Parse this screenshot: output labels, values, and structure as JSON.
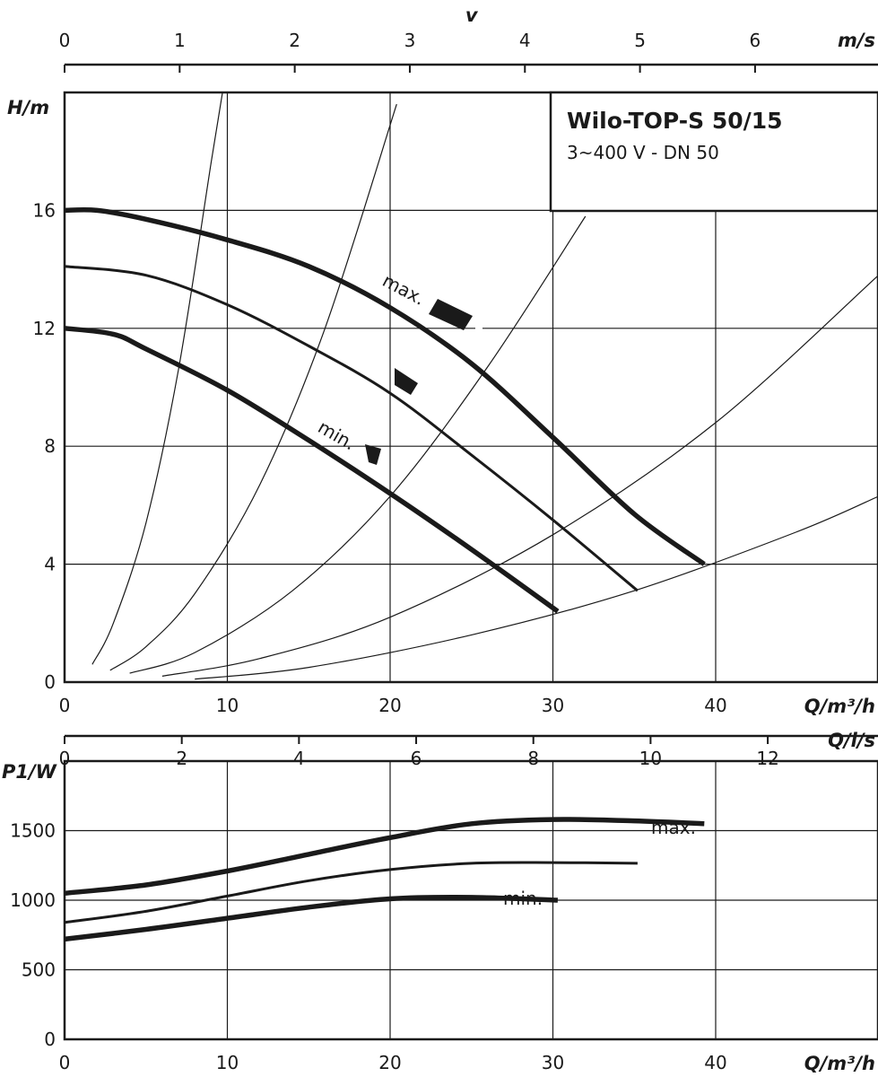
{
  "chart_data": [
    {
      "type": "line",
      "title": "Wilo-TOP-S 50/15",
      "subtitle": "3~400 V - DN 50",
      "xlabel": "Q/m³/h",
      "ylabel": "H/m",
      "xlim": [
        0,
        50
      ],
      "ylim": [
        0,
        20
      ],
      "xticks": [
        "0",
        "10",
        "20",
        "30",
        "40"
      ],
      "yticks": [
        "0",
        "4",
        "8",
        "12",
        "16"
      ],
      "top_axis": {
        "label": "v",
        "unit": "m/s",
        "ticks": [
          "0",
          "1",
          "2",
          "3",
          "4",
          "5",
          "6"
        ],
        "q_per_unit": 7.07
      },
      "series": [
        {
          "name": "max.",
          "x": [
            0,
            2,
            5,
            10,
            15,
            20,
            25,
            30,
            35,
            39.3
          ],
          "y": [
            16.0,
            16.0,
            15.7,
            15.0,
            14.1,
            12.7,
            10.8,
            8.3,
            5.7,
            4.0
          ]
        },
        {
          "name": "",
          "x": [
            0,
            5,
            10,
            15,
            20,
            25,
            30,
            35.2
          ],
          "y": [
            14.1,
            13.8,
            12.8,
            11.4,
            9.8,
            7.7,
            5.5,
            3.1
          ]
        },
        {
          "name": "min.",
          "x": [
            0,
            3,
            5,
            10,
            15,
            20,
            25,
            30.3
          ],
          "y": [
            12.0,
            11.8,
            11.3,
            9.9,
            8.2,
            6.4,
            4.5,
            2.4
          ]
        }
      ],
      "system_curves": [
        {
          "x": [
            1.7,
            3,
            5,
            7,
            9,
            9.7
          ],
          "y": [
            0.6,
            2.0,
            5.4,
            10.6,
            17.6,
            20.0
          ]
        },
        {
          "x": [
            2.8,
            5,
            8,
            12,
            16,
            20.4
          ],
          "y": [
            0.4,
            1.2,
            3.0,
            6.7,
            12.0,
            19.6
          ]
        },
        {
          "x": [
            4,
            8,
            14,
            20,
            26,
            32
          ],
          "y": [
            0.3,
            1.0,
            3.1,
            6.3,
            10.7,
            15.8
          ]
        },
        {
          "x": [
            6,
            12,
            20,
            30,
            40,
            50
          ],
          "y": [
            0.2,
            0.8,
            2.2,
            5.0,
            8.8,
            13.8
          ]
        },
        {
          "x": [
            8,
            15,
            25,
            35,
            45,
            50
          ],
          "y": [
            0.1,
            0.5,
            1.6,
            3.1,
            5.1,
            6.3
          ]
        }
      ],
      "markers": [
        "max.",
        "",
        "min."
      ]
    },
    {
      "type": "line",
      "xlabel": "Q/m³/h",
      "ylabel": "P1/W",
      "xlim": [
        0,
        50
      ],
      "ylim": [
        0,
        2000
      ],
      "xticks": [
        "0",
        "10",
        "20",
        "30",
        "40"
      ],
      "yticks": [
        "0",
        "500",
        "1000",
        "1500"
      ],
      "top_axis": {
        "unit": "Q/l/s",
        "ticks": [
          "0",
          "2",
          "4",
          "6",
          "8",
          "10",
          "12"
        ],
        "q_per_unit": 3.6
      },
      "series": [
        {
          "name": "max.",
          "x": [
            0,
            5,
            10,
            15,
            20,
            25,
            30,
            35,
            39.3
          ],
          "y": [
            1050,
            1110,
            1210,
            1330,
            1450,
            1550,
            1580,
            1570,
            1550
          ]
        },
        {
          "name": "",
          "x": [
            0,
            5,
            10,
            15,
            20,
            25,
            30,
            35.2
          ],
          "y": [
            840,
            920,
            1030,
            1140,
            1220,
            1265,
            1270,
            1265
          ]
        },
        {
          "name": "min.",
          "x": [
            0,
            5,
            10,
            15,
            20,
            25,
            30.3
          ],
          "y": [
            720,
            790,
            870,
            950,
            1010,
            1020,
            1000
          ]
        }
      ]
    }
  ]
}
